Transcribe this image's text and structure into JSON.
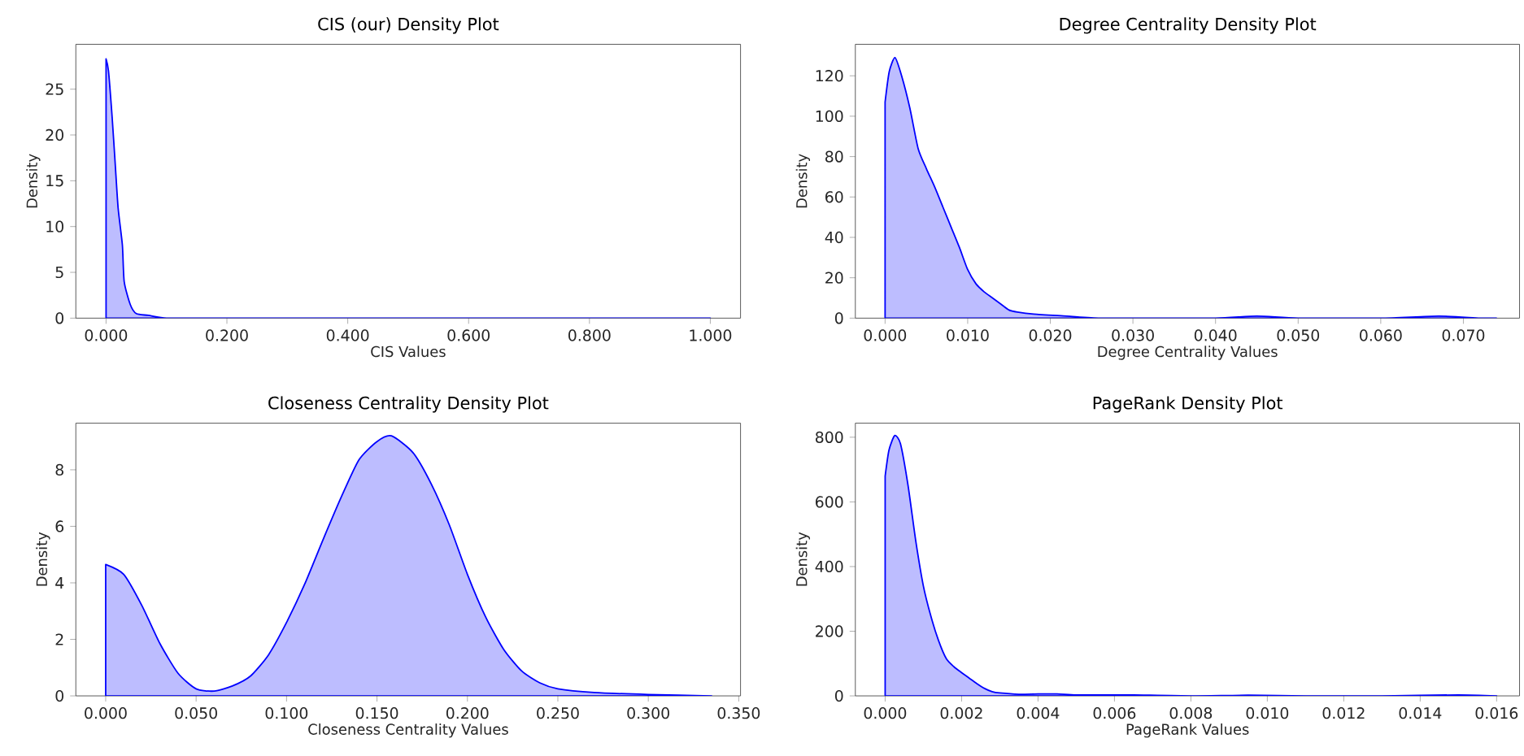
{
  "chart_data": [
    {
      "type": "area",
      "title": "CIS (our) Density Plot",
      "xlabel": "CIS Values",
      "ylabel": "Density",
      "x": [
        0,
        0.004,
        0.01,
        0.015,
        0.02,
        0.027,
        0.03,
        0.04,
        0.05,
        0.07,
        0.1,
        0.15,
        0.3,
        0.47,
        0.6,
        0.8,
        1.0
      ],
      "series": [
        {
          "color": "#0000ff",
          "values": [
            28.3,
            27,
            22,
            17,
            12,
            8,
            4,
            1.5,
            0.5,
            0.3,
            0,
            0,
            0,
            0,
            0,
            0,
            0
          ]
        }
      ],
      "xlim": [
        -0.05,
        1.05
      ],
      "ylim": [
        0,
        29.9
      ],
      "xticks": [
        {
          "value": 0,
          "label": "0.000"
        },
        {
          "value": 0.2,
          "label": "0.200"
        },
        {
          "value": 0.4,
          "label": "0.400"
        },
        {
          "value": 0.6,
          "label": "0.600"
        },
        {
          "value": 0.8,
          "label": "0.800"
        },
        {
          "value": 1.0,
          "label": "1.000"
        }
      ],
      "yticks": [
        0,
        5,
        10,
        15,
        20,
        25
      ]
    },
    {
      "type": "area",
      "title": "Degree Centrality Density Plot",
      "xlabel": "Degree Centrality Values",
      "ylabel": "Density",
      "x": [
        0,
        0.0005,
        0.0012,
        0.002,
        0.003,
        0.004,
        0.005,
        0.006,
        0.007,
        0.008,
        0.009,
        0.01,
        0.011,
        0.012,
        0.013,
        0.014,
        0.015,
        0.016,
        0.018,
        0.022,
        0.026,
        0.03,
        0.04,
        0.045,
        0.05,
        0.06,
        0.067,
        0.072,
        0.074
      ],
      "series": [
        {
          "color": "#0000ff",
          "values": [
            107,
            122,
            129,
            120,
            104,
            84,
            74,
            65,
            55,
            45,
            35,
            24,
            17,
            13,
            10,
            7,
            4,
            3,
            2,
            1,
            0,
            0,
            0,
            1,
            0,
            0,
            1,
            0,
            0
          ]
        }
      ],
      "xlim": [
        -0.0036,
        0.0768
      ],
      "ylim": [
        0,
        135.6
      ],
      "xticks": [
        {
          "value": 0,
          "label": "0.000"
        },
        {
          "value": 0.01,
          "label": "0.010"
        },
        {
          "value": 0.02,
          "label": "0.020"
        },
        {
          "value": 0.03,
          "label": "0.030"
        },
        {
          "value": 0.04,
          "label": "0.040"
        },
        {
          "value": 0.05,
          "label": "0.050"
        },
        {
          "value": 0.06,
          "label": "0.060"
        },
        {
          "value": 0.07,
          "label": "0.070"
        }
      ],
      "yticks": [
        0,
        20,
        40,
        60,
        80,
        100,
        120
      ]
    },
    {
      "type": "area",
      "title": "Closeness Centrality Density Plot",
      "xlabel": "Closeness Centrality Values",
      "ylabel": "Density",
      "x": [
        0,
        0.01,
        0.02,
        0.03,
        0.04,
        0.05,
        0.06,
        0.07,
        0.08,
        0.09,
        0.1,
        0.11,
        0.12,
        0.13,
        0.14,
        0.15,
        0.158,
        0.17,
        0.18,
        0.19,
        0.2,
        0.21,
        0.22,
        0.23,
        0.24,
        0.25,
        0.27,
        0.3,
        0.335
      ],
      "series": [
        {
          "color": "#0000ff",
          "values": [
            4.65,
            4.3,
            3.2,
            1.85,
            0.8,
            0.25,
            0.17,
            0.35,
            0.7,
            1.45,
            2.6,
            3.95,
            5.5,
            7.0,
            8.35,
            9.0,
            9.2,
            8.6,
            7.5,
            6.05,
            4.3,
            2.8,
            1.65,
            0.88,
            0.46,
            0.25,
            0.12,
            0.05,
            0
          ]
        }
      ],
      "xlim": [
        -0.0165,
        0.351
      ],
      "ylim": [
        0,
        9.65
      ],
      "xticks": [
        {
          "value": 0,
          "label": "0.000"
        },
        {
          "value": 0.05,
          "label": "0.050"
        },
        {
          "value": 0.1,
          "label": "0.100"
        },
        {
          "value": 0.15,
          "label": "0.150"
        },
        {
          "value": 0.2,
          "label": "0.200"
        },
        {
          "value": 0.25,
          "label": "0.250"
        },
        {
          "value": 0.3,
          "label": "0.300"
        },
        {
          "value": 0.35,
          "label": "0.350"
        }
      ],
      "yticks": [
        0,
        2,
        4,
        6,
        8
      ]
    },
    {
      "type": "area",
      "title": "PageRank Density Plot",
      "xlabel": "PageRank Values",
      "ylabel": "Density",
      "x": [
        0,
        0.0001,
        0.00025,
        0.0004,
        0.0006,
        0.0008,
        0.001,
        0.0012,
        0.0014,
        0.0016,
        0.0018,
        0.002,
        0.0022,
        0.0024,
        0.0026,
        0.0028,
        0.003,
        0.0035,
        0.004,
        0.0045,
        0.005,
        0.006,
        0.0065,
        0.008,
        0.0095,
        0.011,
        0.013,
        0.015,
        0.016
      ],
      "series": [
        {
          "color": "#0000ff",
          "values": [
            680,
            760,
            805,
            780,
            650,
            480,
            340,
            245,
            170,
            115,
            90,
            72,
            55,
            38,
            23,
            13,
            9,
            5,
            6,
            6,
            3,
            3,
            3,
            0,
            2,
            0,
            0,
            3,
            0
          ]
        }
      ],
      "xlim": [
        -0.00078,
        0.0166
      ],
      "ylim": [
        0,
        843.5
      ],
      "xticks": [
        {
          "value": 0,
          "label": "0.000"
        },
        {
          "value": 0.002,
          "label": "0.002"
        },
        {
          "value": 0.004,
          "label": "0.004"
        },
        {
          "value": 0.006,
          "label": "0.006"
        },
        {
          "value": 0.008,
          "label": "0.008"
        },
        {
          "value": 0.01,
          "label": "0.010"
        },
        {
          "value": 0.012,
          "label": "0.012"
        },
        {
          "value": 0.014,
          "label": "0.014"
        },
        {
          "value": 0.016,
          "label": "0.016"
        }
      ],
      "yticks": [
        0,
        200,
        400,
        600,
        800
      ]
    }
  ]
}
